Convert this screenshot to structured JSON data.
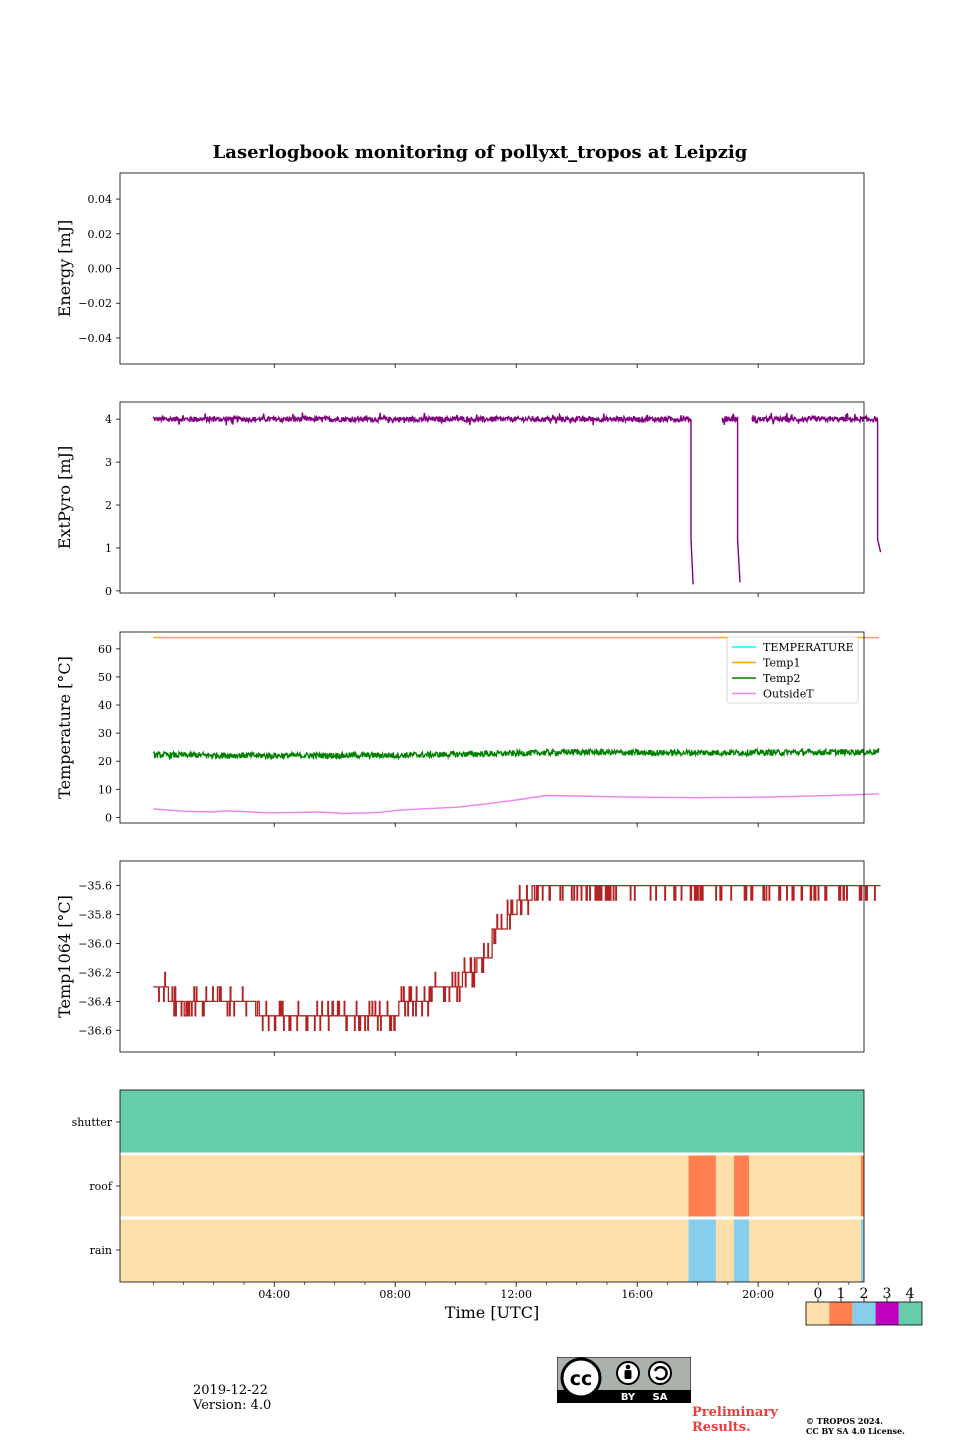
{
  "title": "Laserlogbook monitoring of pollyxt_tropos at Leipzig",
  "footer": {
    "date": "2019-12-22",
    "version": "Version: 4.0",
    "preliminary_line1": "Preliminary",
    "preliminary_line2": "Results.",
    "copyright_line1": "© TROPOS 2024.",
    "copyright_line2": "CC BY SA 4.0 License.",
    "cc_label_cc": "cc",
    "cc_label_by": "BY",
    "cc_label_sa": "SA"
  },
  "colors": {
    "extpyro": "#800080",
    "temperature": "#00ffff",
    "temp1": "#ffa500",
    "temp2": "#008000",
    "outsideT": "#ee82ee",
    "temp1064": "#b22222",
    "flag_colors": [
      "#fddfab",
      "#ff7f50",
      "#87ceeb",
      "#c000c0",
      "#66cdaa"
    ]
  },
  "chart_data": [
    {
      "type": "line",
      "id": "energy",
      "ylabel": "Energy [mJ]",
      "ylim": [
        -0.055,
        0.055
      ],
      "yticks": [
        0.04,
        0.02,
        0.0,
        -0.02,
        -0.04
      ],
      "ytick_labels": [
        "0.04",
        "0.02",
        "0.00",
        "−0.02",
        "−0.04"
      ],
      "series": []
    },
    {
      "type": "line",
      "id": "extpyro",
      "ylabel": "ExtPyro [mJ]",
      "ylim": [
        -0.05,
        4.4
      ],
      "yticks": [
        0,
        1,
        2,
        3,
        4
      ],
      "ytick_labels": [
        "0",
        "1",
        "2",
        "3",
        "4"
      ],
      "series": [
        {
          "name": "ExtPyro",
          "baseline": 4.0,
          "noise": 0.06,
          "segments": [
            [
              0.0,
              17.78
            ],
            [
              18.8,
              19.32
            ],
            [
              19.8,
              23.95
            ]
          ],
          "drops": [
            [
              17.78,
              17.85,
              0.15
            ],
            [
              19.32,
              19.4,
              0.2
            ],
            [
              23.95,
              24.05,
              0.9
            ]
          ]
        }
      ]
    },
    {
      "type": "line",
      "id": "temperature",
      "ylabel": "Temperature [°C]",
      "ylim": [
        -2,
        66
      ],
      "yticks": [
        0,
        10,
        20,
        30,
        40,
        50,
        60
      ],
      "ytick_labels": [
        "0",
        "10",
        "20",
        "30",
        "40",
        "50",
        "60"
      ],
      "legend_position": "upper right",
      "series": [
        {
          "name": "TEMPERATURE",
          "x": [],
          "values": []
        },
        {
          "name": "Temp1",
          "x": [
            0,
            24
          ],
          "values": [
            64,
            64
          ]
        },
        {
          "name": "Temp2",
          "x": [
            0,
            4,
            8,
            12,
            14,
            16,
            20,
            24
          ],
          "values": [
            22.2,
            22.0,
            22.1,
            22.8,
            23.3,
            23.0,
            23.1,
            23.3
          ]
        },
        {
          "name": "OutsideT",
          "x": [
            0,
            1,
            2,
            2.3,
            3,
            3.8,
            4.5,
            5.5,
            6.3,
            7,
            7.5,
            8.2,
            9,
            10,
            11,
            12,
            13,
            14,
            16,
            18,
            19,
            20,
            21,
            22,
            23,
            24
          ],
          "values": [
            3.0,
            2.2,
            1.9,
            2.3,
            2.1,
            1.6,
            1.7,
            1.9,
            1.4,
            1.6,
            1.8,
            2.6,
            3.1,
            3.6,
            4.8,
            6.2,
            7.8,
            7.6,
            7.2,
            7.0,
            7.1,
            7.2,
            7.4,
            7.7,
            8.0,
            8.4
          ]
        }
      ]
    },
    {
      "type": "line",
      "id": "temp1064",
      "ylabel": "Temp1064 [°C]",
      "ylim": [
        -36.75,
        -35.43
      ],
      "yticks": [
        -35.6,
        -35.8,
        -36.0,
        -36.2,
        -36.4,
        -36.6
      ],
      "ytick_labels": [
        "−35.6",
        "−35.8",
        "−36.0",
        "−36.2",
        "−36.4",
        "−36.6"
      ],
      "series": [
        {
          "name": "Temp1064",
          "steps": [
            [
              0,
              -36.3
            ],
            [
              0.5,
              -36.4
            ],
            [
              1.7,
              -36.4
            ],
            [
              3.5,
              -36.5
            ],
            [
              7.5,
              -36.5
            ],
            [
              8.1,
              -36.4
            ],
            [
              9.2,
              -36.35
            ],
            [
              9.8,
              -36.3
            ],
            [
              10.2,
              -36.2
            ],
            [
              10.7,
              -36.1
            ],
            [
              11.2,
              -35.9
            ],
            [
              11.7,
              -35.8
            ],
            [
              12.0,
              -35.7
            ],
            [
              12.5,
              -35.6
            ],
            [
              24.05,
              -35.6
            ]
          ]
        }
      ]
    },
    {
      "type": "heatmap",
      "id": "flags",
      "rows": [
        "shutter",
        "roof",
        "rain"
      ],
      "xlabel": "Time [UTC]",
      "xlim": [
        -1.1,
        23.5
      ],
      "xticks": [
        4,
        8,
        12,
        16,
        20
      ],
      "xtick_labels": [
        "04:00",
        "08:00",
        "12:00",
        "16:00",
        "20:00"
      ],
      "background_value": 0,
      "shutter_value": 4,
      "intervals": [
        {
          "row": "roof",
          "start": 17.7,
          "end": 18.6,
          "value": 1
        },
        {
          "row": "roof",
          "start": 19.2,
          "end": 19.7,
          "value": 1
        },
        {
          "row": "roof",
          "start": 23.4,
          "end": 23.5,
          "value": 1
        },
        {
          "row": "rain",
          "start": 17.7,
          "end": 18.6,
          "value": 2
        },
        {
          "row": "rain",
          "start": 19.2,
          "end": 19.7,
          "value": 2
        },
        {
          "row": "rain",
          "start": 23.4,
          "end": 23.5,
          "value": 2
        }
      ],
      "colorbar_ticks": [
        "0",
        "1",
        "2",
        "3",
        "4"
      ]
    }
  ]
}
